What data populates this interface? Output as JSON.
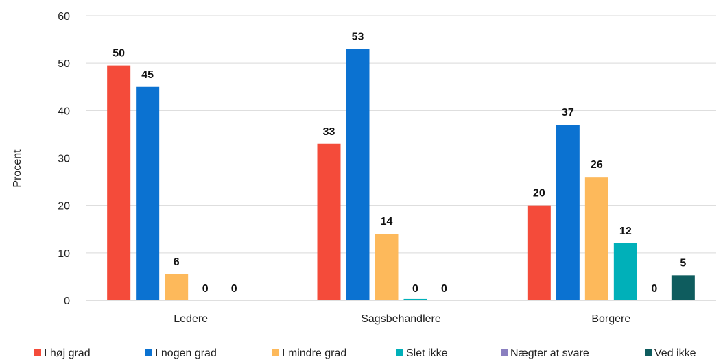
{
  "chart_data": {
    "type": "bar",
    "title": "",
    "xlabel": "",
    "ylabel": "Procent",
    "ylim": [
      0,
      60
    ],
    "yticks": [
      0,
      10,
      20,
      30,
      40,
      50,
      60
    ],
    "grid": true,
    "legend_position": "bottom",
    "categories": [
      "Ledere",
      "Sagsbehandlere",
      "Borgere"
    ],
    "series": [
      {
        "name": "I høj grad",
        "color": "#F44B3A",
        "values": [
          49.5,
          33,
          20
        ],
        "labels": [
          "50",
          "33",
          "20"
        ]
      },
      {
        "name": "I nogen grad",
        "color": "#0B72D1",
        "values": [
          45,
          53,
          37
        ],
        "labels": [
          "45",
          "53",
          "37"
        ]
      },
      {
        "name": "I mindre grad",
        "color": "#FDB95B",
        "values": [
          5.5,
          14,
          26
        ],
        "labels": [
          "6",
          "14",
          "26"
        ]
      },
      {
        "name": "Slet ikke",
        "color": "#00B0B9",
        "values": [
          0,
          0.3,
          12
        ],
        "labels": [
          "0",
          "0",
          "12"
        ]
      },
      {
        "name": "Nægter at svare",
        "color": "#8A7FC0",
        "values": [
          0,
          0,
          0
        ],
        "labels": [
          "0",
          "0",
          "0"
        ]
      },
      {
        "name": "Ved ikke",
        "color": "#0E5C5E",
        "values": [
          0,
          0,
          5.3
        ],
        "labels": [
          "",
          "",
          "5"
        ]
      }
    ]
  }
}
